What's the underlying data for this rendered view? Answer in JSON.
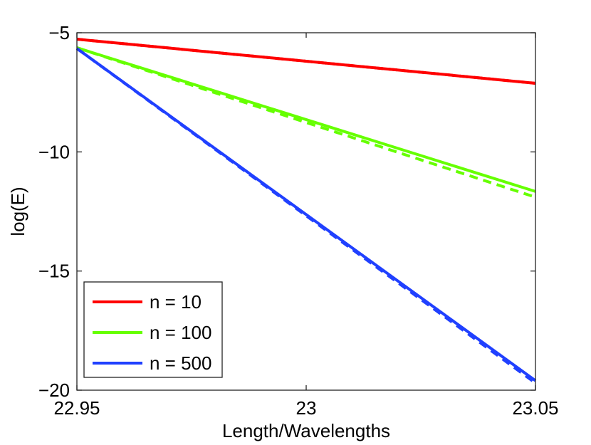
{
  "chart_data": {
    "type": "line",
    "title": "",
    "xlabel": "Length/Wavelengths",
    "ylabel": "log(E)",
    "xlim": [
      22.95,
      23.05
    ],
    "ylim": [
      -20,
      -5
    ],
    "xticks": [
      22.95,
      23,
      23.05
    ],
    "xtick_labels": [
      "22.95",
      "23",
      "23.05"
    ],
    "yticks": [
      -5,
      -10,
      -15,
      -20
    ],
    "ytick_labels": [
      "−5",
      "−10",
      "−15",
      "−20"
    ],
    "grid": false,
    "legend_position": "bottom-left",
    "series": [
      {
        "name": "n = 10",
        "color": "#ff0000",
        "style": "solid",
        "x": [
          22.95,
          23.05
        ],
        "y": [
          -5.27,
          -7.12
        ],
        "show_in_legend": true
      },
      {
        "name": "n = 10 (dashed)",
        "color": "#ff0000",
        "style": "dashed",
        "x": [
          22.95,
          23.05
        ],
        "y": [
          -5.27,
          -7.12
        ],
        "show_in_legend": false
      },
      {
        "name": "n = 100 (dashed)",
        "color": "#66ff00",
        "style": "dashed",
        "x": [
          22.95,
          23.05
        ],
        "y": [
          -5.63,
          -11.9
        ],
        "show_in_legend": false
      },
      {
        "name": "n = 100",
        "color": "#66ff00",
        "style": "solid",
        "x": [
          22.95,
          23.05
        ],
        "y": [
          -5.63,
          -11.66
        ],
        "show_in_legend": true
      },
      {
        "name": "n = 500 (dashed)",
        "color": "#2040ff",
        "style": "dashed",
        "x": [
          22.95,
          23.05
        ],
        "y": [
          -5.66,
          -19.7
        ],
        "show_in_legend": false
      },
      {
        "name": "n = 500",
        "color": "#2040ff",
        "style": "solid",
        "x": [
          22.95,
          23.05
        ],
        "y": [
          -5.66,
          -19.6
        ],
        "show_in_legend": true
      }
    ],
    "legend": [
      "n = 10",
      "n = 100",
      "n = 500"
    ]
  }
}
